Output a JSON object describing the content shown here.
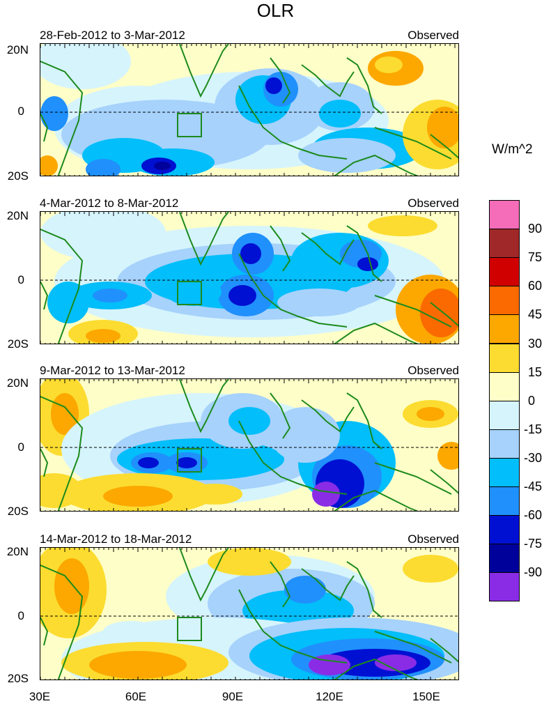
{
  "title": "OLR",
  "units": "W/m^2",
  "lat_labels": [
    "20N",
    "0",
    "20S"
  ],
  "lon_labels": [
    "30E",
    "60E",
    "90E",
    "120E",
    "150E"
  ],
  "panels": [
    {
      "date_range": "28-Feb-2012 to 3-Mar-2012",
      "tag": "Observed"
    },
    {
      "date_range": "4-Mar-2012 to 8-Mar-2012",
      "tag": "Observed"
    },
    {
      "date_range": "9-Mar-2012 to 13-Mar-2012",
      "tag": "Observed"
    },
    {
      "date_range": "14-Mar-2012 to 18-Mar-2012",
      "tag": "Observed"
    }
  ],
  "colorbar": {
    "labels": [
      "90",
      "75",
      "60",
      "45",
      "30",
      "15",
      "0",
      "-15",
      "-30",
      "-45",
      "-60",
      "-75",
      "-90"
    ],
    "colors": [
      "#f56cb9",
      "#a12828",
      "#d00000",
      "#fa6a00",
      "#fca800",
      "#fcdc30",
      "#fefec8",
      "#d6f4fc",
      "#a6d2fc",
      "#02befa",
      "#2090fc",
      "#0010d2",
      "#00009a",
      "#8a2ce6"
    ]
  },
  "map_colors": {
    "neutral": "#fefec8",
    "light_blue": "#d6f4fc",
    "pale_blue": "#a6d2fc",
    "cyan": "#02befa",
    "mid_blue": "#2090fc",
    "blue": "#0010d2",
    "navy": "#00009a",
    "purple": "#8a2ce6",
    "yellow": "#fcdc30",
    "orange": "#fca800",
    "dark_orange": "#fa6a00",
    "coast": "#1c8a1c"
  }
}
